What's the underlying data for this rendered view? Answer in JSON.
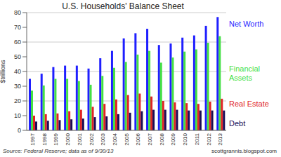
{
  "chart_data": {
    "type": "bar",
    "title": "U.S. Households' Balance Sheet",
    "y_label": "$trillions",
    "annotations": [
      "Source: Federal Reserve; data as of 9/30/13",
      "scottgrannis.blogspot.com"
    ],
    "categories": [
      "1997",
      "1998",
      "1999",
      "2000",
      "2001",
      "2002",
      "2003",
      "2004",
      "2005",
      "2006",
      "2007",
      "2008",
      "2009",
      "2010",
      "2011",
      "2012",
      "2013"
    ],
    "series": [
      {
        "name": "Net Worth",
        "color": "#1f1fff",
        "values": [
          35,
          38.5,
          43,
          44,
          44,
          42,
          49,
          54,
          62.5,
          66,
          69,
          58,
          59,
          63,
          64.5,
          71,
          77
        ]
      },
      {
        "name": "Financial Assets",
        "color": "#44e044",
        "values": [
          27,
          30.5,
          35,
          35,
          33.5,
          31,
          37,
          42.5,
          46.5,
          51.5,
          54,
          46,
          49.5,
          53.5,
          55,
          59.5,
          64
        ]
      },
      {
        "name": "Real Estate",
        "color": "#e02424",
        "values": [
          10,
          11,
          11.5,
          13,
          14,
          16,
          18,
          21,
          24,
          25,
          23,
          20,
          19,
          18.5,
          18,
          19.5,
          21.5
        ]
      },
      {
        "name": "Debt",
        "color": "#1c0c55",
        "values": [
          6,
          6.5,
          7,
          7.5,
          8,
          9,
          9.5,
          11,
          12,
          13,
          14,
          14,
          14,
          13.5,
          13.5,
          13.5,
          13.5
        ]
      }
    ],
    "ylim": [
      0,
      80
    ],
    "yticks": [
      0,
      10,
      20,
      30,
      40,
      50,
      60,
      70,
      80
    ],
    "grid": true
  }
}
